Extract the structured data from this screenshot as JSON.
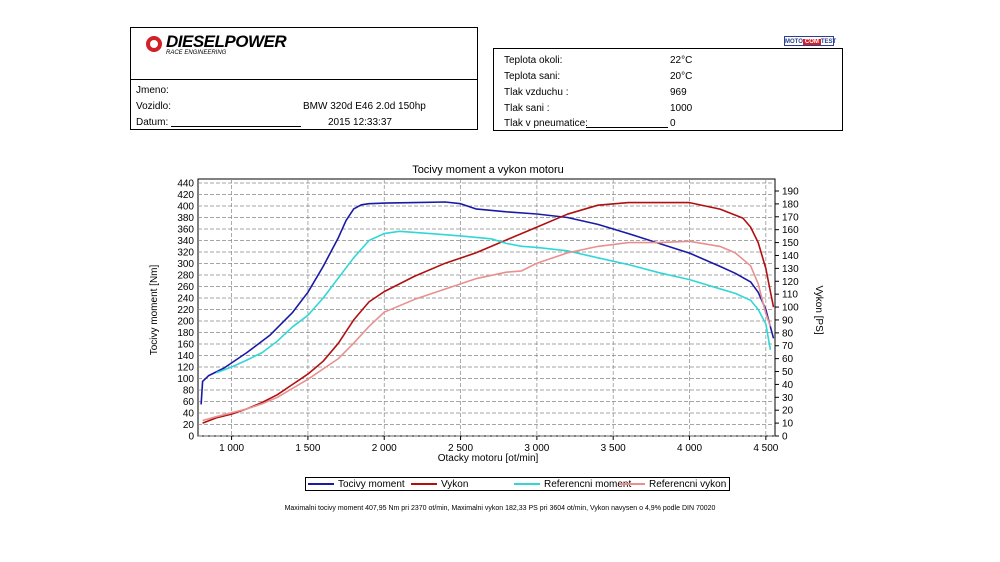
{
  "logo": {
    "brand": "DIESELPOWER",
    "tagline": "RACE ENGINEERING",
    "badge_left": "MOTO",
    "badge_mid": "COM",
    "badge_right": "TEST"
  },
  "vehicle": {
    "jmeno_label": "Jmeno:",
    "vozidlo_label": "Vozidlo:",
    "vozidlo_value": "BMW 320d E46 2.0d 150hp",
    "datum_label": "Datum:",
    "datum_value": "2015 12:33:37"
  },
  "conditions": [
    {
      "label": "Teplota okoli:",
      "value": "22°C"
    },
    {
      "label": "Teplota sani:",
      "value": "20°C"
    },
    {
      "label": "Tlak vzduchu :",
      "value": "969"
    },
    {
      "label": "Tlak sani :",
      "value": "1000"
    },
    {
      "label": "Tlak v pneumatice:",
      "value": "0"
    }
  ],
  "colors": {
    "torque": "#1a1aa6",
    "power": "#b01010",
    "ref_torque": "#33d6d6",
    "ref_power": "#e89090"
  },
  "chart_data": {
    "type": "line",
    "title": "Tocivy moment a vykon motoru",
    "xlabel": "Otacky motoru [ot/min]",
    "ylabel_left": "Tocivy moment [Nm]",
    "ylabel_right": "Vykon [PS]",
    "xlim": [
      780,
      4560
    ],
    "ylim_left": [
      0,
      440
    ],
    "ylim_right": [
      0,
      190
    ],
    "x_ticks": [
      1000,
      1500,
      2000,
      2500,
      3000,
      3500,
      4000,
      4500
    ],
    "x_tick_labels": [
      "1 000",
      "1 500",
      "2 000",
      "2 500",
      "3 000",
      "3 500",
      "4 000",
      "4 500"
    ],
    "y_left_ticks": [
      0,
      20,
      40,
      60,
      80,
      100,
      120,
      140,
      160,
      180,
      200,
      220,
      240,
      260,
      280,
      300,
      320,
      340,
      360,
      380,
      400,
      420,
      440
    ],
    "y_right_ticks": [
      0,
      10,
      20,
      30,
      40,
      50,
      60,
      70,
      80,
      90,
      100,
      110,
      120,
      130,
      140,
      150,
      160,
      170,
      180,
      190
    ],
    "grid": true,
    "series": [
      {
        "name": "Tocivy moment",
        "axis": "left",
        "color": "#1a1aa6",
        "x": [
          800,
          810,
          850,
          950,
          1100,
          1250,
          1400,
          1500,
          1600,
          1700,
          1750,
          1800,
          1850,
          1900,
          2000,
          2200,
          2400,
          2500,
          2600,
          2800,
          3000,
          3200,
          3400,
          3600,
          3800,
          4000,
          4200,
          4300,
          4400,
          4450,
          4500,
          4530,
          4550
        ],
        "y": [
          55,
          95,
          105,
          118,
          145,
          175,
          215,
          250,
          295,
          345,
          375,
          395,
          402,
          404,
          405,
          406,
          407,
          404,
          395,
          390,
          386,
          380,
          368,
          352,
          335,
          318,
          295,
          283,
          268,
          250,
          220,
          190,
          170
        ]
      },
      {
        "name": "Vykon",
        "axis": "right",
        "color": "#b01010",
        "x": [
          810,
          900,
          1000,
          1100,
          1200,
          1300,
          1400,
          1500,
          1600,
          1700,
          1800,
          1900,
          2000,
          2200,
          2400,
          2600,
          2800,
          3000,
          3200,
          3400,
          3600,
          3800,
          4000,
          4200,
          4350,
          4400,
          4450,
          4500,
          4530,
          4550
        ],
        "y": [
          10,
          14,
          17,
          21,
          26,
          32,
          40,
          48,
          58,
          72,
          90,
          104,
          112,
          124,
          134,
          142,
          152,
          162,
          172,
          179,
          181,
          181,
          181,
          176,
          169,
          162,
          150,
          130,
          112,
          100
        ]
      },
      {
        "name": "Referencni moment",
        "axis": "left",
        "color": "#33d6d6",
        "x": [
          900,
          1000,
          1100,
          1200,
          1300,
          1400,
          1500,
          1600,
          1700,
          1800,
          1900,
          2000,
          2100,
          2300,
          2500,
          2700,
          2800,
          2900,
          3000,
          3200,
          3400,
          3600,
          3800,
          4000,
          4200,
          4300,
          4400,
          4450,
          4500,
          4530
        ],
        "y": [
          110,
          120,
          132,
          145,
          165,
          190,
          210,
          240,
          275,
          310,
          340,
          352,
          356,
          352,
          348,
          343,
          335,
          330,
          328,
          322,
          310,
          298,
          284,
          272,
          256,
          248,
          236,
          220,
          195,
          150
        ]
      },
      {
        "name": "Referencni vykon",
        "axis": "right",
        "color": "#e89090",
        "x": [
          810,
          900,
          1000,
          1100,
          1200,
          1300,
          1400,
          1500,
          1600,
          1700,
          1800,
          1900,
          2000,
          2200,
          2400,
          2600,
          2800,
          2900,
          3000,
          3200,
          3400,
          3600,
          3800,
          4000,
          4200,
          4300,
          4400,
          4450,
          4500,
          4530
        ],
        "y": [
          12,
          15,
          18,
          21,
          25,
          30,
          37,
          44,
          52,
          60,
          72,
          85,
          96,
          106,
          114,
          122,
          127,
          128,
          134,
          142,
          147,
          150,
          150,
          151,
          147,
          142,
          132,
          118,
          95,
          85
        ]
      }
    ]
  },
  "legend": [
    "Tocivy moment",
    "Vykon",
    "Referencni moment",
    "Referencni vykon"
  ],
  "footer": "Maximalni tocivy moment 407,95 Nm pri 2370 ot/min,  Maximalni vykon 182,33 PS pri 3604 ot/min,  Vykon navysen o 4,9% podle DIN 70020"
}
